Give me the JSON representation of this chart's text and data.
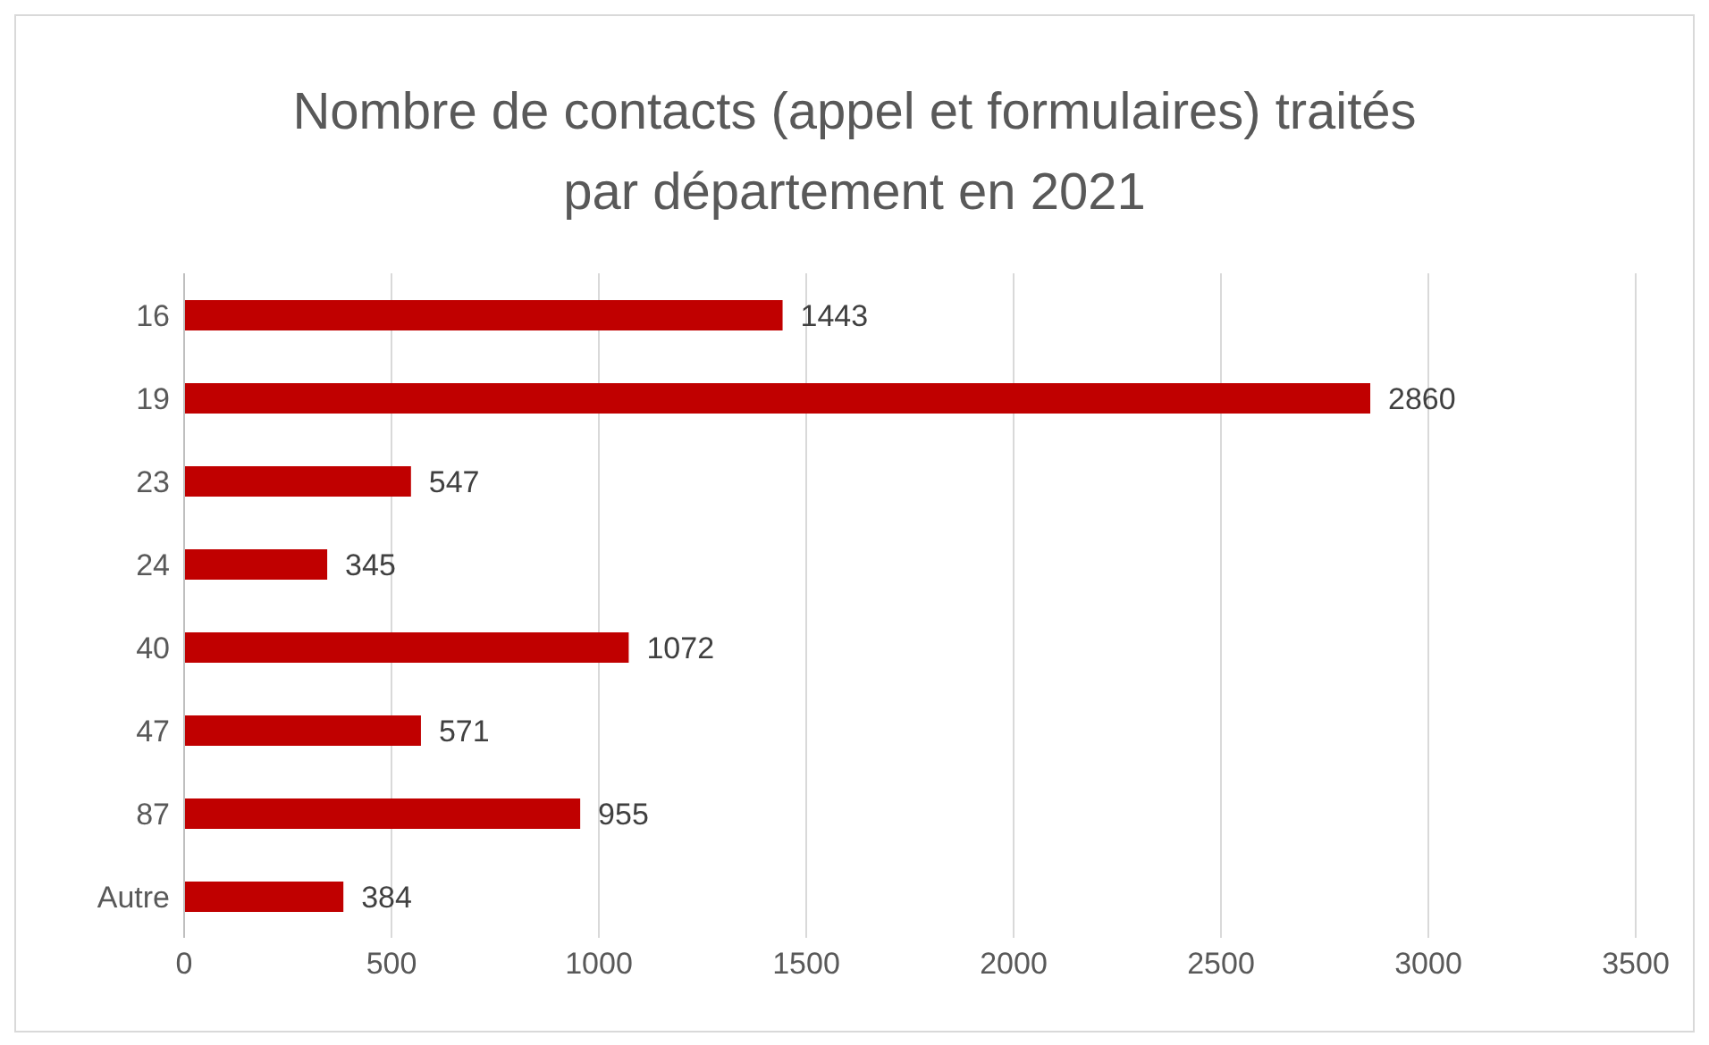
{
  "chart_data": {
    "type": "bar",
    "orientation": "horizontal",
    "title": "Nombre de contacts (appel et formulaires) traités par département en 2021",
    "categories": [
      "16",
      "19",
      "23",
      "24",
      "40",
      "47",
      "87",
      "Autre"
    ],
    "values": [
      1443,
      2860,
      547,
      345,
      1072,
      571,
      955,
      384
    ],
    "color": "#c00000",
    "xlim": [
      0,
      3500
    ],
    "xticks": [
      0,
      500,
      1000,
      1500,
      2000,
      2500,
      3000,
      3500
    ],
    "grid": "x",
    "data_labels": true
  }
}
